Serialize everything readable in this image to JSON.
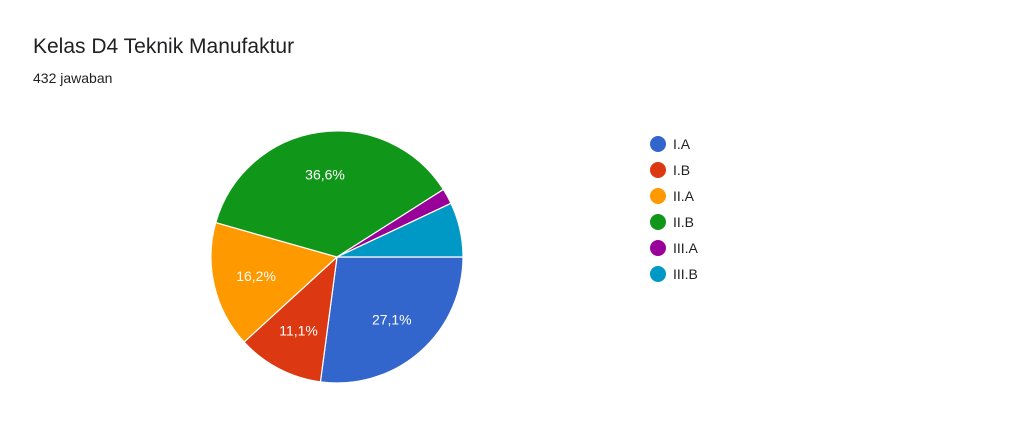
{
  "header": {
    "title": "Kelas D4 Teknik Manufaktur",
    "response_count": "432 jawaban"
  },
  "chart_data": {
    "type": "pie",
    "title": "Kelas D4 Teknik Manufaktur",
    "legend_position": "right",
    "start_direction": "right",
    "direction": "clockwise",
    "slices": [
      {
        "label": "I.A",
        "value": 27.1,
        "display": "27,1%",
        "color": "#3366cc"
      },
      {
        "label": "I.B",
        "value": 11.1,
        "display": "11,1%",
        "color": "#dc3912"
      },
      {
        "label": "II.A",
        "value": 16.2,
        "display": "16,2%",
        "color": "#ff9900"
      },
      {
        "label": "II.B",
        "value": 36.6,
        "display": "36,6%",
        "color": "#109618"
      },
      {
        "label": "III.A",
        "value": 2.0,
        "display": "",
        "color": "#990099"
      },
      {
        "label": "III.B",
        "value": 7.0,
        "display": "",
        "color": "#0099c6"
      }
    ]
  }
}
